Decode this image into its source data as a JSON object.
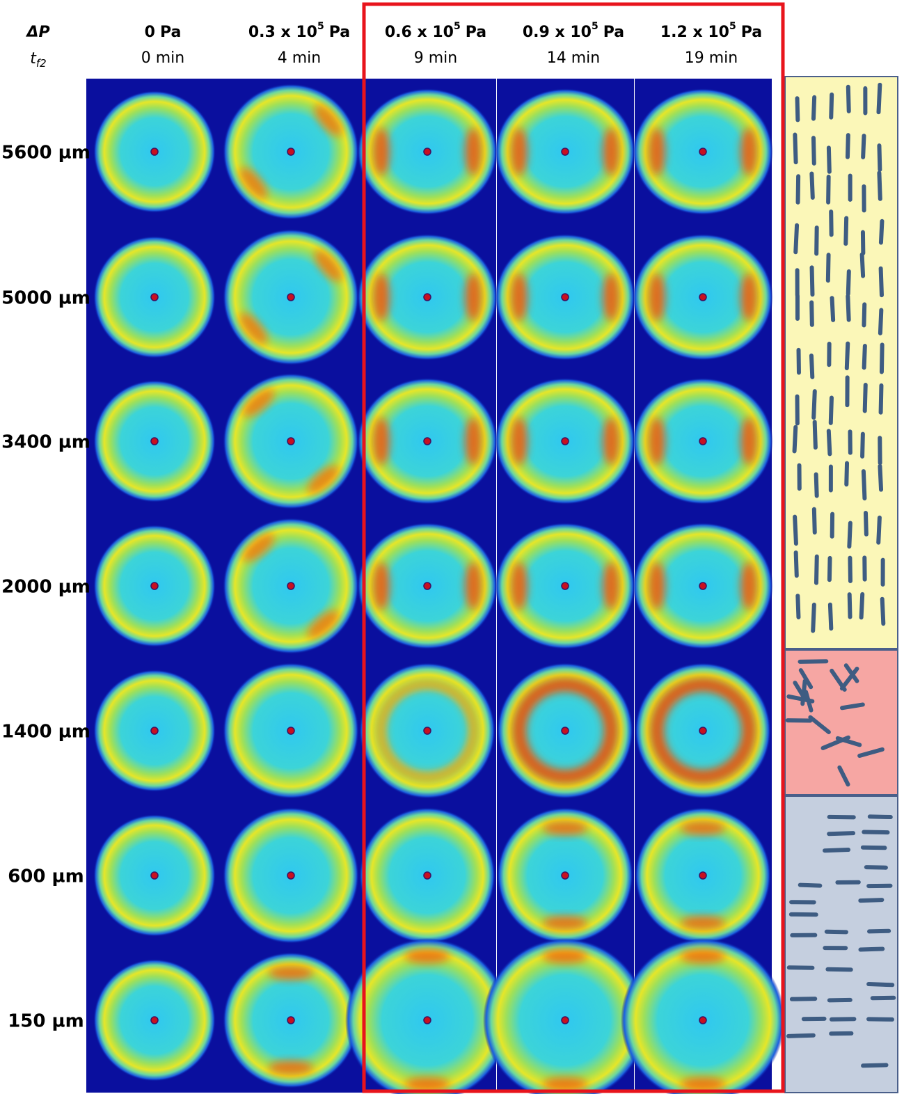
{
  "header": {
    "pressure_symbol": "ΔP",
    "time_symbol": "t",
    "time_subscript": "f2"
  },
  "columns": [
    {
      "pressure": {
        "base": "0",
        "unit": "Pa"
      },
      "time": "0 min"
    },
    {
      "pressure": {
        "base": "0.3 x 10",
        "exp": "5",
        "unit": "Pa"
      },
      "time": "4 min"
    },
    {
      "pressure": {
        "base": "0.6 x 10",
        "exp": "5",
        "unit": "Pa"
      },
      "time": "9 min"
    },
    {
      "pressure": {
        "base": "0.9 x 10",
        "exp": "5",
        "unit": "Pa"
      },
      "time": "14 min"
    },
    {
      "pressure": {
        "base": "1.2 x 10",
        "exp": "5",
        "unit": "Pa"
      },
      "time": "19 min"
    }
  ],
  "rows": [
    "5600 µm",
    "5000 µm",
    "3400 µm",
    "2000 µm",
    "1400 µm",
    "600 µm",
    "150 µm"
  ]
}
